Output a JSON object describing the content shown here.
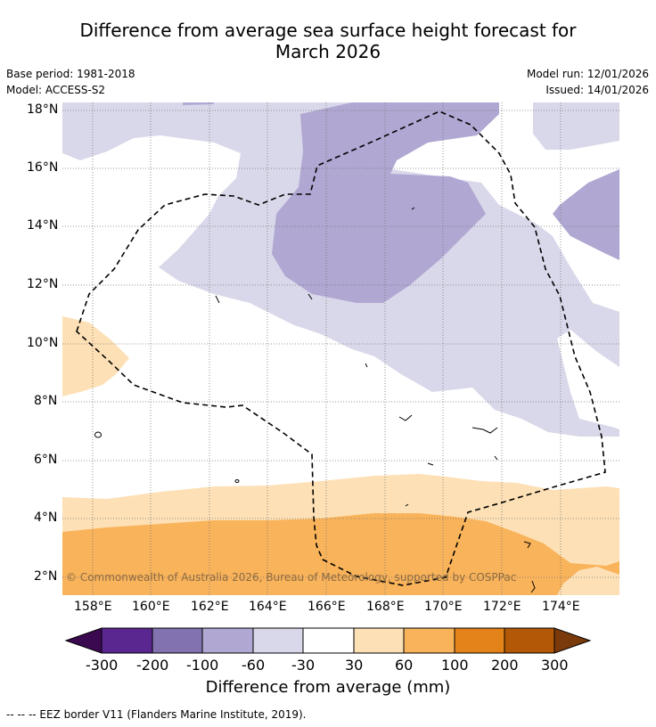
{
  "title": {
    "line1": "Difference from average sea surface height forecast for",
    "line2": "March 2026"
  },
  "meta": {
    "base_period": "Base period: 1981-2018",
    "model": "Model: ACCESS-S2",
    "model_run": "Model run: 12/01/2026",
    "issued": "Issued: 14/01/2026"
  },
  "map": {
    "latitude_labels": [
      "18°N",
      "16°N",
      "14°N",
      "12°N",
      "10°N",
      "8°N",
      "6°N",
      "4°N",
      "2°N"
    ],
    "longitude_labels": [
      "158°E",
      "160°E",
      "162°E",
      "164°E",
      "166°E",
      "168°E",
      "170°E",
      "172°E",
      "174°E"
    ],
    "copyright": "© Commonwealth of Australia 2026, Bureau of Meteorology, supported by COSPPac"
  },
  "colorbar": {
    "labels": [
      "-300",
      "-200",
      "-100",
      "-60",
      "-30",
      "30",
      "60",
      "100",
      "200",
      "300"
    ],
    "colors": [
      "#3b0950",
      "#5a2790",
      "#8272b0",
      "#b0a7d2",
      "#d9d8ea",
      "#ffffff",
      "#fde0b5",
      "#f9b35a",
      "#e3831a",
      "#b35806",
      "#7b3a0b"
    ],
    "title": "Difference from average (mm)"
  },
  "footnote": "--  --  -- EEZ border V11 (Flanders Marine Institute, 2019)."
}
